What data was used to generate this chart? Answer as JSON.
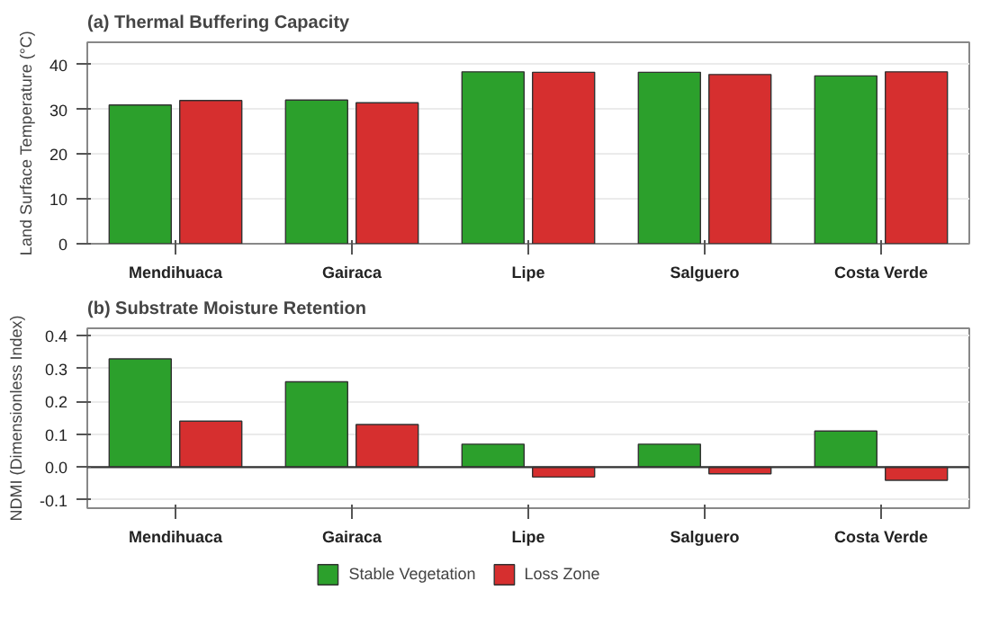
{
  "chart_data": [
    {
      "type": "bar",
      "title": "(a) Thermal Buffering Capacity",
      "ylabel": "Land Surface Temperature (°C)",
      "categories": [
        "Mendihuaca",
        "Gairaca",
        "Lipe",
        "Salguero",
        "Costa Verde"
      ],
      "series": [
        {
          "color": "#2ca02c",
          "values": [
            31.0,
            32.1,
            38.4,
            38.3,
            37.5
          ]
        },
        {
          "color": "#d62f2f",
          "values": [
            32.0,
            31.5,
            38.3,
            37.8,
            38.4
          ]
        }
      ],
      "ylim": [
        0,
        45
      ],
      "yticks": [
        0,
        10,
        20,
        30,
        40
      ],
      "grid": "y",
      "legend": false
    },
    {
      "type": "bar",
      "title": "(b) Substrate Moisture Retention",
      "ylabel": "NDMI (Dimensionless Index)",
      "categories": [
        "Mendihuaca",
        "Gairaca",
        "Lipe",
        "Salguero",
        "Costa Verde"
      ],
      "series": [
        {
          "name": "Stable Vegetation",
          "color": "#2ca02c",
          "values": [
            0.33,
            0.26,
            0.07,
            0.07,
            0.11
          ]
        },
        {
          "name": "Loss Zone",
          "color": "#d62f2f",
          "values": [
            0.14,
            0.13,
            -0.03,
            -0.02,
            -0.04
          ]
        }
      ],
      "ylim": [
        -0.125,
        0.423
      ],
      "yticks": [
        -0.1,
        {
          "value": 0,
          "label": "0.0"
        },
        0.1,
        0.2,
        0.3,
        0.4
      ],
      "grid": "y",
      "ref_lines": [
        {
          "axis": "y",
          "value": 0,
          "color": "#333333"
        }
      ],
      "legend": "bottom"
    }
  ]
}
